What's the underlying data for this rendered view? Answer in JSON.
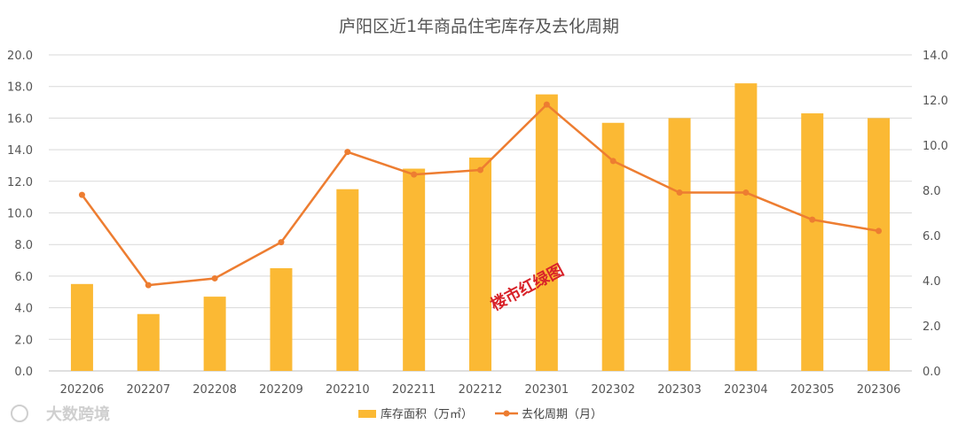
{
  "chart_data": {
    "type": "bar+line",
    "title": "庐阳区近1年商品住宅库存及去化周期",
    "categories": [
      "202206",
      "202207",
      "202208",
      "202209",
      "202210",
      "202211",
      "202212",
      "202301",
      "202302",
      "202303",
      "202304",
      "202305",
      "202306"
    ],
    "series": [
      {
        "name": "库存面积（万㎡）",
        "type": "bar",
        "axis": "left",
        "color": "#FBB934",
        "values": [
          5.5,
          3.6,
          4.7,
          6.5,
          11.5,
          12.8,
          13.5,
          17.5,
          15.7,
          16.0,
          18.2,
          16.3,
          16.0
        ]
      },
      {
        "name": "去化周期（月）",
        "type": "line",
        "axis": "right",
        "color": "#ED7D31",
        "values": [
          7.8,
          3.8,
          4.1,
          5.7,
          9.7,
          8.7,
          8.9,
          11.8,
          9.3,
          7.9,
          7.9,
          6.7,
          6.2
        ]
      }
    ],
    "y_left": {
      "ylim": [
        0,
        20
      ],
      "ticks": [
        "0.0",
        "2.0",
        "4.0",
        "6.0",
        "8.0",
        "10.0",
        "12.0",
        "14.0",
        "16.0",
        "18.0",
        "20.0"
      ]
    },
    "y_right": {
      "ylim": [
        0,
        14
      ],
      "ticks": [
        "0.0",
        "2.0",
        "4.0",
        "6.0",
        "8.0",
        "10.0",
        "12.0",
        "14.0"
      ]
    },
    "grid": true,
    "legend_position": "bottom"
  },
  "watermark": "楼市红绿图",
  "brand_logo": "大数跨境"
}
